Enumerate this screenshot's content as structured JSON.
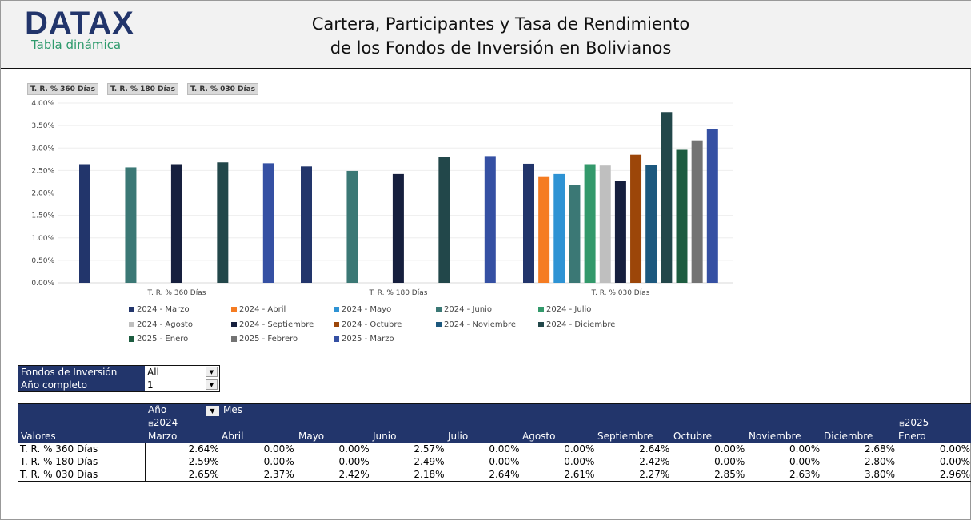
{
  "header": {
    "logo": "DATAX",
    "subtitle": "Tabla dinámica",
    "title_line1": "Cartera, Participantes y Tasa de Rendimiento",
    "title_line2": "de los Fondos de Inversión en Bolivianos"
  },
  "field_buttons": [
    "T. R. % 360 Días",
    "T. R. % 180 Días",
    "T. R. % 030 Días"
  ],
  "chart_data": {
    "type": "bar",
    "categories": [
      "T. R. % 360 Días",
      "T. R. % 180 Días",
      "T. R. % 030 Días"
    ],
    "ylim": [
      0,
      4
    ],
    "yticks": [
      "0.00%",
      "0.50%",
      "1.00%",
      "1.50%",
      "2.00%",
      "2.50%",
      "3.00%",
      "3.50%",
      "4.00%"
    ],
    "grid": true,
    "legend_position": "bottom",
    "series": [
      {
        "name": "2024 - Marzo",
        "color": "#22356b",
        "values": [
          2.64,
          2.59,
          2.65
        ]
      },
      {
        "name": "2024 - Abril",
        "color": "#f57c22",
        "values": [
          0,
          0,
          2.37
        ]
      },
      {
        "name": "2024 - Mayo",
        "color": "#2e93d4",
        "values": [
          0,
          0,
          2.42
        ]
      },
      {
        "name": "2024 - Junio",
        "color": "#3b7875",
        "values": [
          2.57,
          2.49,
          2.18
        ]
      },
      {
        "name": "2024 - Julio",
        "color": "#33996b",
        "values": [
          0,
          0,
          2.64
        ]
      },
      {
        "name": "2024 - Agosto",
        "color": "#bfbfbf",
        "values": [
          0,
          0,
          2.61
        ]
      },
      {
        "name": "2024 - Septiembre",
        "color": "#161f3e",
        "values": [
          2.64,
          2.42,
          2.27
        ]
      },
      {
        "name": "2024 - Octubre",
        "color": "#9c4609",
        "values": [
          0,
          0,
          2.85
        ]
      },
      {
        "name": "2024 - Noviembre",
        "color": "#1c587e",
        "values": [
          0,
          0,
          2.63
        ]
      },
      {
        "name": "2024 - Diciembre",
        "color": "#22474a",
        "values": [
          2.68,
          2.8,
          3.8
        ]
      },
      {
        "name": "2025 - Enero",
        "color": "#1d5c40",
        "values": [
          0,
          0,
          2.96
        ]
      },
      {
        "name": "2025 - Febrero",
        "color": "#737373",
        "values": [
          0,
          0,
          3.17
        ]
      },
      {
        "name": "2025 - Marzo",
        "color": "#3550a3",
        "values": [
          2.66,
          2.82,
          3.42
        ]
      }
    ]
  },
  "filters": [
    {
      "label": "Fondos de Inversión",
      "value": "All"
    },
    {
      "label": "Año completo",
      "value": "1"
    }
  ],
  "pivot": {
    "valores": "Valores",
    "anio": "Año",
    "mes": "Mes",
    "year2024": "2024",
    "year2025": "2025",
    "months": [
      "Marzo",
      "Abril",
      "Mayo",
      "Junio",
      "Julio",
      "Agosto",
      "Septiembre",
      "Octubre",
      "Noviembre",
      "Diciembre",
      "Enero"
    ],
    "rows": [
      {
        "label": "T. R. % 360 Días",
        "values": [
          "2.64%",
          "0.00%",
          "0.00%",
          "2.57%",
          "0.00%",
          "0.00%",
          "2.64%",
          "0.00%",
          "0.00%",
          "2.68%",
          "0.00%"
        ]
      },
      {
        "label": "T. R. % 180 Días",
        "values": [
          "2.59%",
          "0.00%",
          "0.00%",
          "2.49%",
          "0.00%",
          "0.00%",
          "2.42%",
          "0.00%",
          "0.00%",
          "2.80%",
          "0.00%"
        ]
      },
      {
        "label": "T. R. % 030 Días",
        "values": [
          "2.65%",
          "2.37%",
          "2.42%",
          "2.18%",
          "2.64%",
          "2.61%",
          "2.27%",
          "2.85%",
          "2.63%",
          "3.80%",
          "2.96%"
        ]
      }
    ]
  }
}
